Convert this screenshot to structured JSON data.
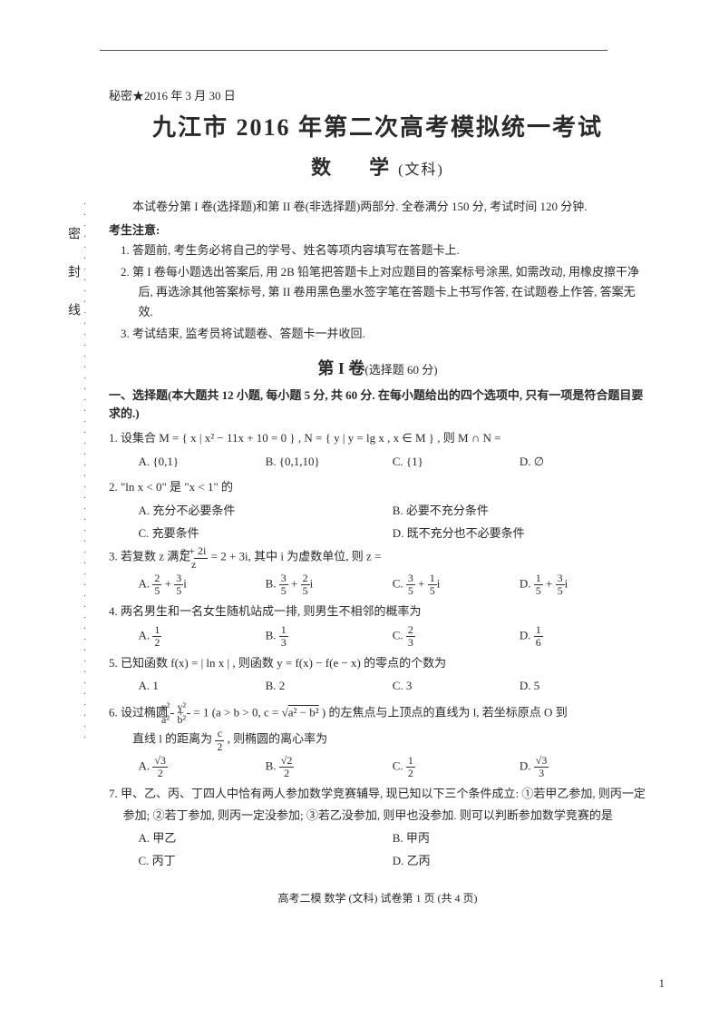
{
  "secret": "秘密★2016 年 3 月 30 日",
  "title": "九江市 2016 年第二次高考模拟统一考试",
  "subject": "数　学",
  "subject_paren": "(文科)",
  "intro": "本试卷分第 I 卷(选择题)和第 II 卷(非选择题)两部分. 全卷满分 150 分, 考试时间 120 分钟.",
  "notice_head": "考生注意:",
  "notices": [
    "1. 答题前, 考生务必将自己的学号、姓名等项内容填写在答题卡上.",
    "2. 第 I 卷每小题选出答案后, 用 2B 铅笔把答题卡上对应题目的答案标号涂黑, 如需改动, 用橡皮擦干净后, 再选涂其他答案标号, 第 II 卷用黑色墨水签字笔在答题卡上书写作答, 在试题卷上作答, 答案无效.",
    "3. 考试结束, 监考员将试题卷、答题卡一并收回."
  ],
  "section1_head": "第 I 卷",
  "section1_note": "(选择题 60 分)",
  "block1_head": "一、选择题(本大题共 12 小题, 每小题 5 分, 共 60 分. 在每小题给出的四个选项中, 只有一项是符合题目要求的.)",
  "q1": "1. 设集合 M = { x | x² − 11x + 10 = 0 } , N = { y | y = lg x , x ∈ M } , 则 M ∩ N =",
  "q1_opts": {
    "A": "A. {0,1}",
    "B": "B. {0,1,10}",
    "C": "C. {1}",
    "D": "D. ∅"
  },
  "q2": "2. \"ln x < 0\" 是 \"x < 1\" 的",
  "q2_opts": {
    "A": "A. 充分不必要条件",
    "B": "B. 必要不充分条件",
    "C": "C. 充要条件",
    "D": "D. 既不充分也不必要条件"
  },
  "q3_pre": "3. 若复数 z 满足",
  "q3_frac_n": "z + 2i",
  "q3_frac_d": "z",
  "q3_post": " = 2 + 3i, 其中 i 为虚数单位, 则 z =",
  "q3_opts": {
    "A_pre": "A. ",
    "A_n1": "2",
    "A_d1": "5",
    "A_mid": " + ",
    "A_n2": "3",
    "A_d2": "5",
    "A_post": "i",
    "B_pre": "B. ",
    "B_n1": "3",
    "B_d1": "5",
    "B_mid": " + ",
    "B_n2": "2",
    "B_d2": "5",
    "B_post": "i",
    "C_pre": "C. ",
    "C_n1": "3",
    "C_d1": "5",
    "C_mid": " + ",
    "C_n2": "1",
    "C_d2": "5",
    "C_post": "i",
    "D_pre": "D. ",
    "D_n1": "1",
    "D_d1": "5",
    "D_mid": " + ",
    "D_n2": "3",
    "D_d2": "5",
    "D_post": "i"
  },
  "q4": "4. 两名男生和一名女生随机站成一排, 则男生不相邻的概率为",
  "q4_opts": {
    "A_pre": "A. ",
    "A_n": "1",
    "A_d": "2",
    "B_pre": "B. ",
    "B_n": "1",
    "B_d": "3",
    "C_pre": "C. ",
    "C_n": "2",
    "C_d": "3",
    "D_pre": "D. ",
    "D_n": "1",
    "D_d": "6"
  },
  "q5": "5. 已知函数 f(x) = | ln x | , 则函数 y = f(x) − f(e − x) 的零点的个数为",
  "q5_opts": {
    "A": "A. 1",
    "B": "B. 2",
    "C": "C. 3",
    "D": "D. 5"
  },
  "q6_pre": "6. 设过椭圆",
  "q6_f1n": "x²",
  "q6_f1d": "a²",
  "q6_plus": " + ",
  "q6_f2n": "y²",
  "q6_f2d": "b²",
  "q6_mid": " = 1 (a > b > 0, c = ",
  "q6_sqrt": "a² − b²",
  "q6_post": " ) 的左焦点与上顶点的直线为 l, 若坐标原点 O 到",
  "q6_line2_pre": "直线 l 的距离为",
  "q6_l2n": "c",
  "q6_l2d": "2",
  "q6_line2_post": ", 则椭圆的离心率为",
  "q6_opts": {
    "A_pre": "A. ",
    "A_n": "√3",
    "A_d": "2",
    "B_pre": "B. ",
    "B_n": "√2",
    "B_d": "2",
    "C_pre": "C. ",
    "C_n": "1",
    "C_d": "2",
    "D_pre": "D. ",
    "D_n": "√3",
    "D_d": "3"
  },
  "q7": "7. 甲、乙、丙、丁四人中恰有两人参加数学竞赛辅导, 现已知以下三个条件成立: ①若甲乙参加, 则丙一定参加; ②若丁参加, 则丙一定没参加; ③若乙没参加, 则甲也没参加. 则可以判断参加数学竞赛的是",
  "q7_opts": {
    "A": "A. 甲乙",
    "B": "B. 甲丙",
    "C": "C. 丙丁",
    "D": "D. 乙丙"
  },
  "sidebar": "密封线",
  "footer": "高考二模 数学 (文科)  试卷第 1 页 (共 4 页)",
  "pagenum": "1"
}
